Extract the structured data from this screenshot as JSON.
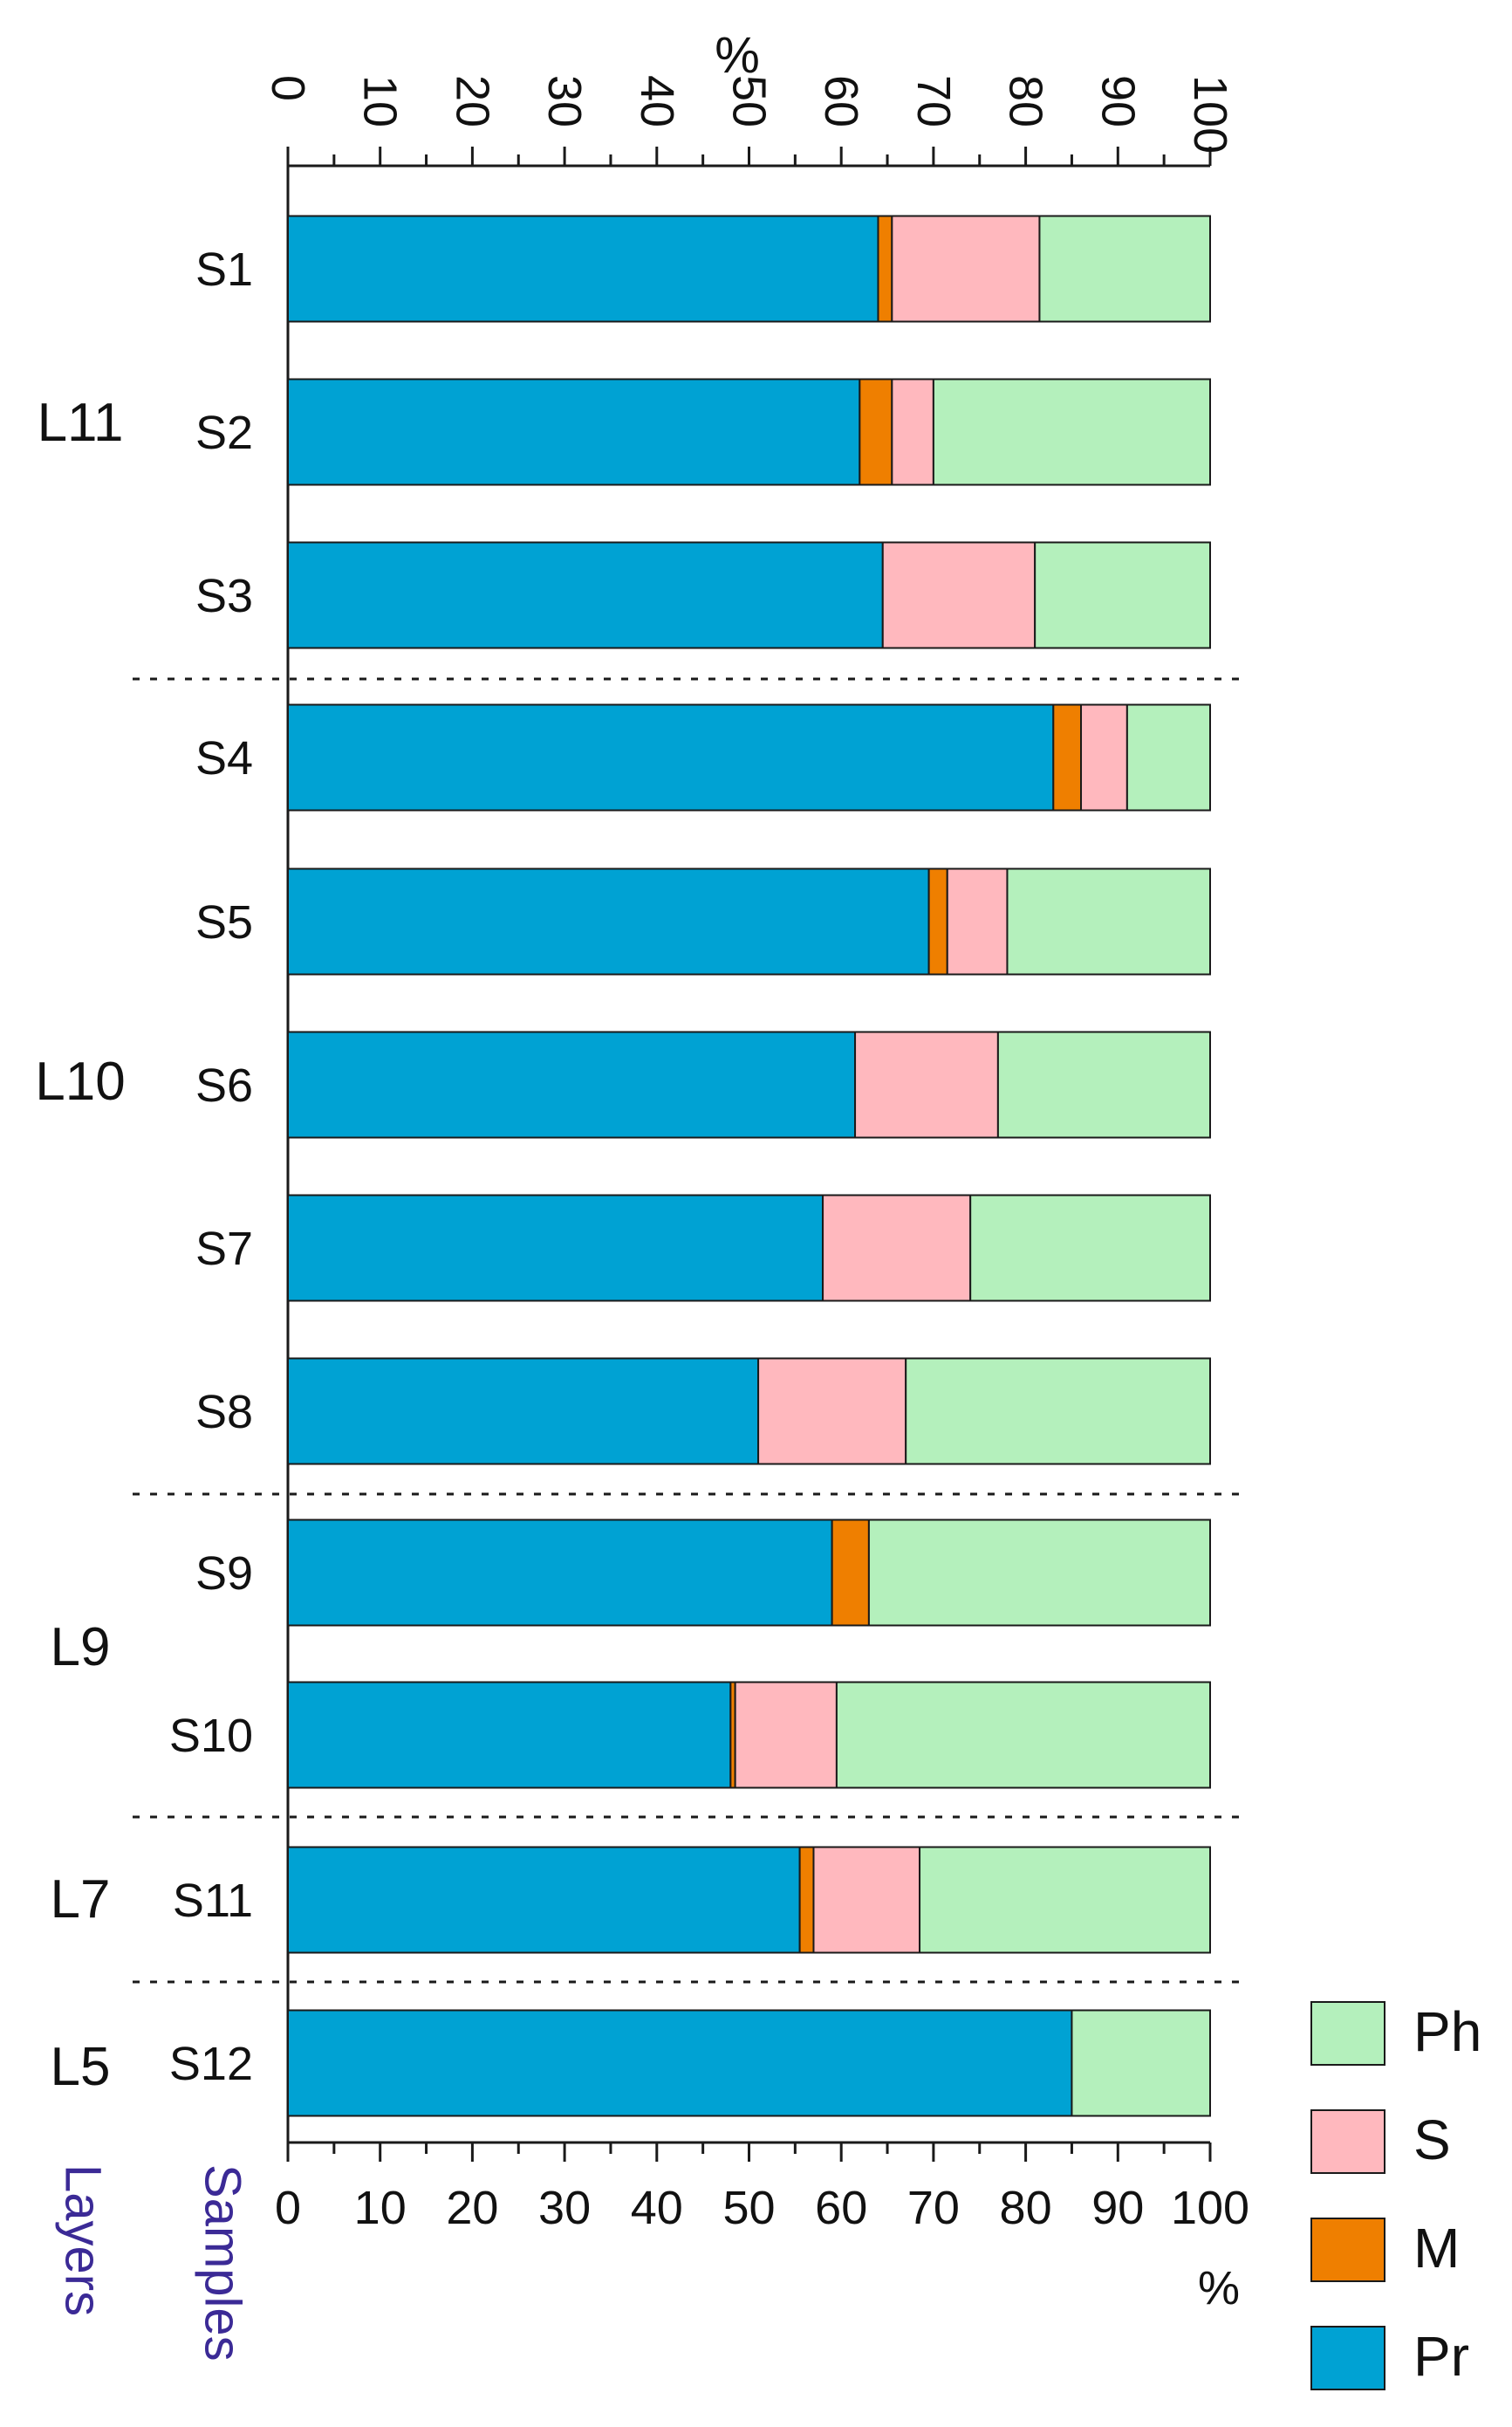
{
  "chart_data": {
    "type": "bar",
    "orientation": "horizontal",
    "stacked": true,
    "xlabel_top": "%",
    "xlabel_bottom": "%",
    "xlim": [
      0,
      100
    ],
    "xticks": [
      0,
      10,
      20,
      30,
      40,
      50,
      60,
      70,
      80,
      90,
      100
    ],
    "row_header_layers": "Layers",
    "row_header_samples": "Samples",
    "categories": [
      "S1",
      "S2",
      "S3",
      "S4",
      "S5",
      "S6",
      "S7",
      "S8",
      "S9",
      "S10",
      "S11",
      "S12"
    ],
    "series": [
      {
        "name": "Pr",
        "color": "#00a2d3",
        "values": [
          64,
          62,
          64.5,
          83,
          69.5,
          61.5,
          58,
          51,
          59,
          48,
          55.5,
          85
        ]
      },
      {
        "name": "M",
        "color": "#ef7f00",
        "values": [
          1.5,
          3.5,
          0,
          3,
          2,
          0,
          0,
          0,
          4,
          0.5,
          1.5,
          0
        ]
      },
      {
        "name": "S",
        "color": "#ffb8be",
        "values": [
          16,
          4.5,
          16.5,
          5,
          6.5,
          15.5,
          16,
          16,
          0,
          11,
          11.5,
          0
        ]
      },
      {
        "name": "Ph",
        "color": "#b4f0bc",
        "values": [
          18.5,
          30,
          19,
          9,
          22,
          23,
          26,
          33,
          37,
          40.5,
          31.5,
          15
        ]
      }
    ],
    "layers": [
      {
        "label": "L11",
        "samples": [
          "S1",
          "S2",
          "S3"
        ]
      },
      {
        "label": "L10",
        "samples": [
          "S4",
          "S5",
          "S6",
          "S7",
          "S8"
        ]
      },
      {
        "label": "L9",
        "samples": [
          "S9",
          "S10"
        ]
      },
      {
        "label": "L7",
        "samples": [
          "S11"
        ]
      },
      {
        "label": "L5",
        "samples": [
          "S12"
        ]
      }
    ],
    "legend": [
      "Ph",
      "S",
      "M",
      "Pr"
    ],
    "legend_position": "bottom-right",
    "colors": {
      "Pr": "#00a2d3",
      "M": "#ef7f00",
      "S": "#ffb8be",
      "Ph": "#b4f0bc",
      "header_text": "#3b2a96"
    }
  }
}
